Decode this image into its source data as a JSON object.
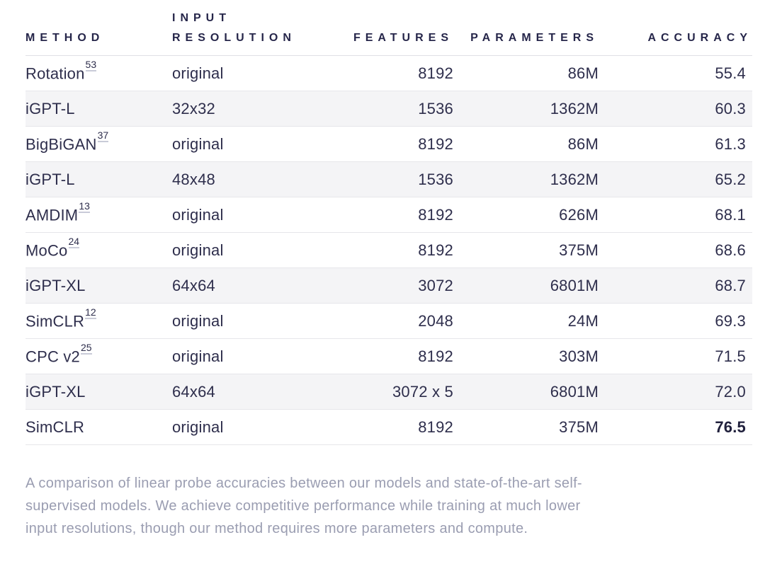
{
  "colors": {
    "text": "#2e2e4c",
    "header_text": "#26264a",
    "caption_text": "#9a9db1",
    "highlight_row_bg": "#f4f4f6",
    "row_border": "#e6e6ea",
    "header_border": "#dfdfe6",
    "citation_underline": "#c9cbd8",
    "page_bg": "#ffffff"
  },
  "chart_data": {
    "type": "table",
    "columns": [
      "METHOD",
      "INPUT RESOLUTION",
      "FEATURES",
      "PARAMETERS",
      "ACCURACY"
    ],
    "rows": [
      {
        "method": "Rotation",
        "citation": "53",
        "input_resolution": "original",
        "features": "8192",
        "parameters": "86M",
        "accuracy": "55.4",
        "highlighted": false,
        "accuracy_bold": false
      },
      {
        "method": "iGPT-L",
        "citation": "",
        "input_resolution": "32x32",
        "features": "1536",
        "parameters": "1362M",
        "accuracy": "60.3",
        "highlighted": true,
        "accuracy_bold": false
      },
      {
        "method": "BigBiGAN",
        "citation": "37",
        "input_resolution": "original",
        "features": "8192",
        "parameters": "86M",
        "accuracy": "61.3",
        "highlighted": false,
        "accuracy_bold": false
      },
      {
        "method": "iGPT-L",
        "citation": "",
        "input_resolution": "48x48",
        "features": "1536",
        "parameters": "1362M",
        "accuracy": "65.2",
        "highlighted": true,
        "accuracy_bold": false
      },
      {
        "method": "AMDIM",
        "citation": "13",
        "input_resolution": "original",
        "features": "8192",
        "parameters": "626M",
        "accuracy": "68.1",
        "highlighted": false,
        "accuracy_bold": false
      },
      {
        "method": "MoCo",
        "citation": "24",
        "input_resolution": "original",
        "features": "8192",
        "parameters": "375M",
        "accuracy": "68.6",
        "highlighted": false,
        "accuracy_bold": false
      },
      {
        "method": "iGPT-XL",
        "citation": "",
        "input_resolution": "64x64",
        "features": "3072",
        "parameters": "6801M",
        "accuracy": "68.7",
        "highlighted": true,
        "accuracy_bold": false
      },
      {
        "method": "SimCLR",
        "citation": "12",
        "input_resolution": "original",
        "features": "2048",
        "parameters": "24M",
        "accuracy": "69.3",
        "highlighted": false,
        "accuracy_bold": false
      },
      {
        "method": "CPC v2",
        "citation": "25",
        "input_resolution": "original",
        "features": "8192",
        "parameters": "303M",
        "accuracy": "71.5",
        "highlighted": false,
        "accuracy_bold": false
      },
      {
        "method": "iGPT-XL",
        "citation": "",
        "input_resolution": "64x64",
        "features": "3072 x 5",
        "parameters": "6801M",
        "accuracy": "72.0",
        "highlighted": true,
        "accuracy_bold": false
      },
      {
        "method": "SimCLR",
        "citation": "",
        "input_resolution": "original",
        "features": "8192",
        "parameters": "375M",
        "accuracy": "76.5",
        "highlighted": false,
        "accuracy_bold": true
      }
    ],
    "caption": "A comparison of linear probe accuracies between our models and state-of-the-art self-supervised models. We achieve competitive performance while training at much lower input resolutions, though our method requires more parameters and compute."
  },
  "caption_lines": [
    "A comparison of linear probe accuracies between our models and state-of-the-art self-",
    "supervised models. We achieve competitive performance while training at much lower",
    "input resolutions, though our method requires more parameters and compute."
  ]
}
